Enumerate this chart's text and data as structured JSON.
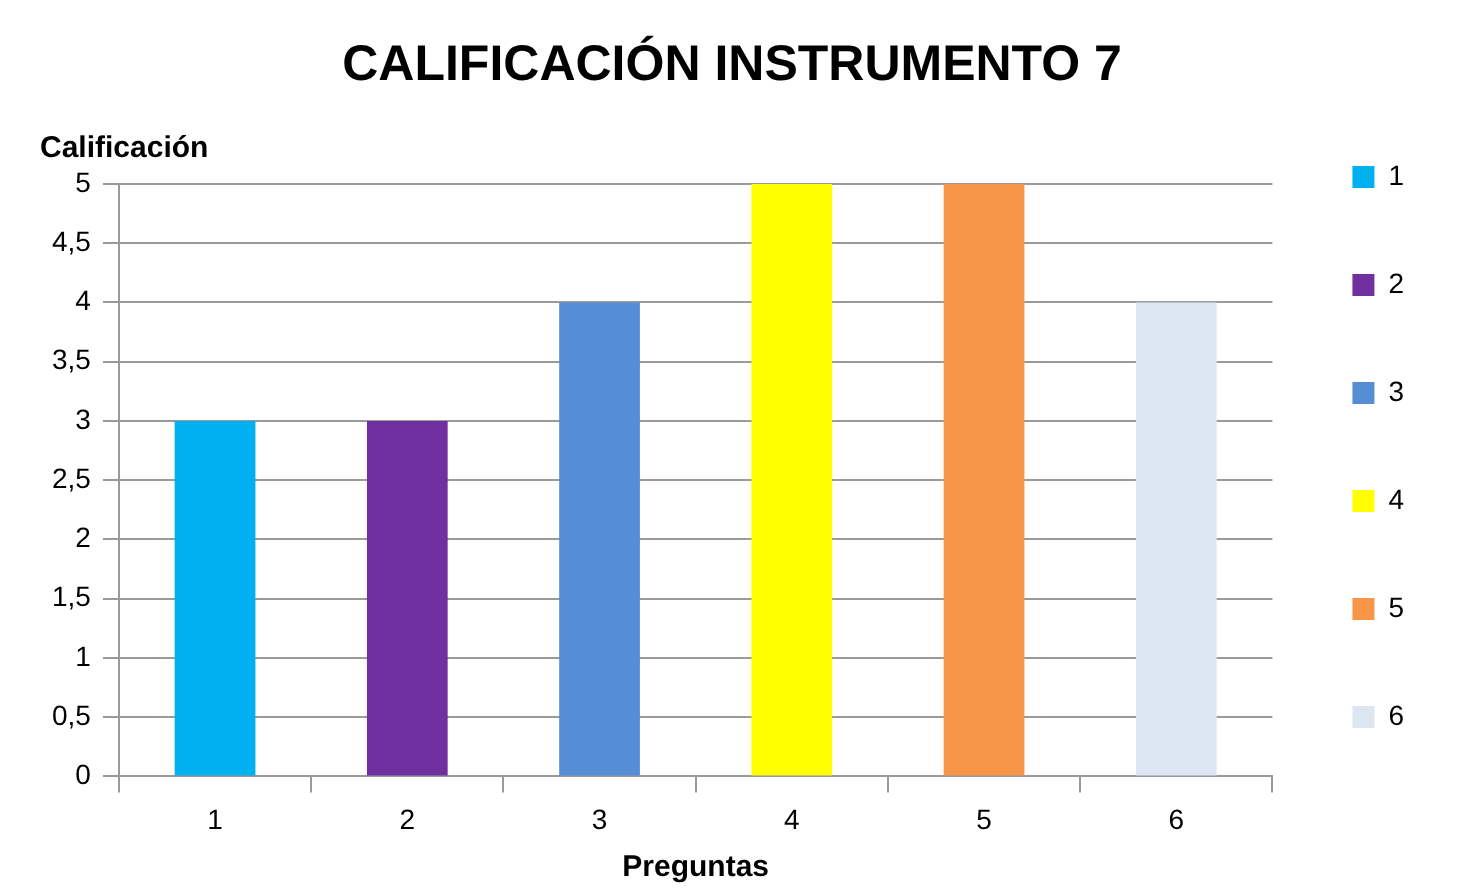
{
  "chart_data": {
    "type": "bar",
    "title": "CALIFICACIÓN INSTRUMENTO 7",
    "xlabel": "Preguntas",
    "ylabel": "Calificación",
    "categories": [
      "1",
      "2",
      "3",
      "4",
      "5",
      "6"
    ],
    "series": [
      {
        "name": "1",
        "color": "#00b0f0",
        "values": [
          3,
          null,
          null,
          null,
          null,
          null
        ]
      },
      {
        "name": "2",
        "color": "#7030a0",
        "values": [
          null,
          3,
          null,
          null,
          null,
          null
        ]
      },
      {
        "name": "3",
        "color": "#558ed5",
        "values": [
          null,
          null,
          4,
          null,
          null,
          null
        ]
      },
      {
        "name": "4",
        "color": "#ffff00",
        "values": [
          null,
          null,
          null,
          5,
          null,
          null
        ]
      },
      {
        "name": "5",
        "color": "#f79646",
        "values": [
          null,
          null,
          null,
          null,
          5,
          null
        ]
      },
      {
        "name": "6",
        "color": "#dce6f2",
        "values": [
          null,
          null,
          null,
          null,
          null,
          4
        ]
      }
    ],
    "ylim": [
      0,
      5
    ],
    "yticks": [
      0,
      {
        "value": 0.5,
        "label": "0,5"
      },
      1,
      {
        "value": 1.5,
        "label": "1,5"
      },
      2,
      {
        "value": 2.5,
        "label": "2,5"
      },
      3,
      {
        "value": 3.5,
        "label": "3,5"
      },
      4,
      {
        "value": 4.5,
        "label": "4,5"
      },
      5
    ],
    "grid": "y",
    "legend": "right"
  }
}
